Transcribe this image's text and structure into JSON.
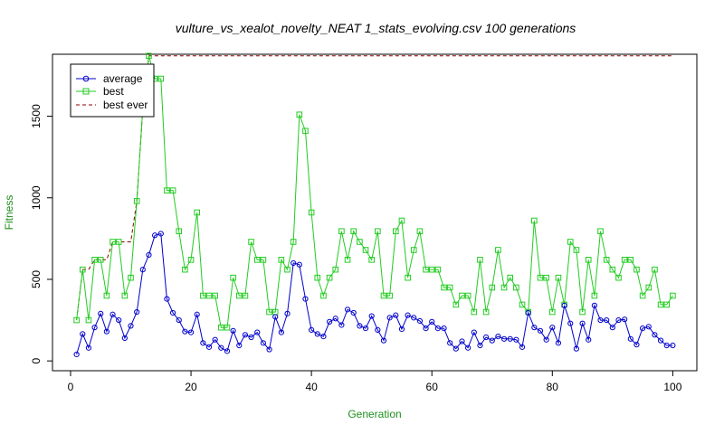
{
  "chart_data": {
    "type": "line",
    "title": "vulture_vs_xealot_novelty_NEAT 1_stats_evolving.csv 100 generations",
    "xlabel": "Generation",
    "ylabel": "Fitness",
    "xlim": [
      -3,
      104
    ],
    "ylim": [
      -60,
      1880
    ],
    "xticks": [
      0,
      20,
      40,
      60,
      80,
      100
    ],
    "yticks": [
      0,
      500,
      1000,
      1500
    ],
    "xtick_labels": [
      "0",
      "20",
      "40",
      "60",
      "80",
      "100"
    ],
    "ytick_labels": [
      "0",
      "500",
      "1000",
      "1500"
    ],
    "grid": false,
    "legend_position": "top-left",
    "legend": [
      "average",
      "best",
      "best ever"
    ],
    "colors": {
      "average": "#0000cc",
      "best": "#22cc22",
      "best_ever": "#8b0000",
      "axis_label": "#1f8f1f"
    },
    "x": [
      1,
      2,
      3,
      4,
      5,
      6,
      7,
      8,
      9,
      10,
      11,
      12,
      13,
      14,
      15,
      16,
      17,
      18,
      19,
      20,
      21,
      22,
      23,
      24,
      25,
      26,
      27,
      28,
      29,
      30,
      31,
      32,
      33,
      34,
      35,
      36,
      37,
      38,
      39,
      40,
      41,
      42,
      43,
      44,
      45,
      46,
      47,
      48,
      49,
      50,
      51,
      52,
      53,
      54,
      55,
      56,
      57,
      58,
      59,
      60,
      61,
      62,
      63,
      64,
      65,
      66,
      67,
      68,
      69,
      70,
      71,
      72,
      73,
      74,
      75,
      76,
      77,
      78,
      79,
      80,
      81,
      82,
      83,
      84,
      85,
      86,
      87,
      88,
      89,
      90,
      91,
      92,
      93,
      94,
      95,
      96,
      97,
      98,
      99,
      100
    ],
    "series": [
      {
        "name": "average",
        "marker": "circle",
        "values": [
          40,
          165,
          80,
          205,
          290,
          180,
          285,
          250,
          140,
          215,
          300,
          560,
          650,
          770,
          780,
          380,
          295,
          250,
          180,
          175,
          285,
          110,
          85,
          130,
          80,
          60,
          185,
          95,
          160,
          145,
          175,
          110,
          70,
          270,
          175,
          290,
          600,
          590,
          380,
          190,
          165,
          150,
          240,
          260,
          220,
          315,
          295,
          215,
          200,
          275,
          190,
          125,
          265,
          280,
          195,
          280,
          265,
          245,
          200,
          240,
          200,
          200,
          110,
          75,
          120,
          80,
          175,
          95,
          145,
          125,
          150,
          135,
          135,
          130,
          85,
          295,
          205,
          185,
          130,
          205,
          110,
          340,
          230,
          75,
          230,
          130,
          340,
          250,
          250,
          205,
          250,
          255,
          135,
          100,
          200,
          210,
          160,
          125,
          95,
          95
        ]
      },
      {
        "name": "best",
        "marker": "square",
        "values": [
          250,
          560,
          250,
          620,
          620,
          400,
          730,
          730,
          400,
          510,
          980,
          1550,
          1870,
          1730,
          1730,
          1045,
          1045,
          795,
          560,
          620,
          910,
          400,
          400,
          400,
          205,
          205,
          510,
          400,
          400,
          730,
          620,
          620,
          300,
          300,
          620,
          560,
          730,
          1510,
          1410,
          910,
          510,
          400,
          510,
          560,
          795,
          620,
          795,
          730,
          680,
          620,
          795,
          400,
          400,
          795,
          860,
          510,
          680,
          795,
          560,
          560,
          560,
          450,
          450,
          345,
          400,
          400,
          300,
          620,
          300,
          450,
          680,
          450,
          510,
          450,
          345,
          300,
          860,
          510,
          510,
          300,
          510,
          345,
          730,
          680,
          300,
          620,
          400,
          795,
          620,
          560,
          510,
          620,
          620,
          560,
          400,
          450,
          560,
          345,
          345,
          400
        ]
      },
      {
        "name": "best ever",
        "marker": "none",
        "dashed": true,
        "values": [
          250,
          560,
          560,
          620,
          620,
          620,
          730,
          730,
          730,
          730,
          980,
          1550,
          1870,
          1870,
          1870,
          1870,
          1870,
          1870,
          1870,
          1870,
          1870,
          1870,
          1870,
          1870,
          1870,
          1870,
          1870,
          1870,
          1870,
          1870,
          1870,
          1870,
          1870,
          1870,
          1870,
          1870,
          1870,
          1870,
          1870,
          1870,
          1870,
          1870,
          1870,
          1870,
          1870,
          1870,
          1870,
          1870,
          1870,
          1870,
          1870,
          1870,
          1870,
          1870,
          1870,
          1870,
          1870,
          1870,
          1870,
          1870,
          1870,
          1870,
          1870,
          1870,
          1870,
          1870,
          1870,
          1870,
          1870,
          1870,
          1870,
          1870,
          1870,
          1870,
          1870,
          1870,
          1870,
          1870,
          1870,
          1870,
          1870,
          1870,
          1870,
          1870,
          1870,
          1870,
          1870,
          1870,
          1870,
          1870,
          1870,
          1870,
          1870,
          1870,
          1870,
          1870,
          1870,
          1870,
          1870,
          1870
        ]
      }
    ]
  }
}
